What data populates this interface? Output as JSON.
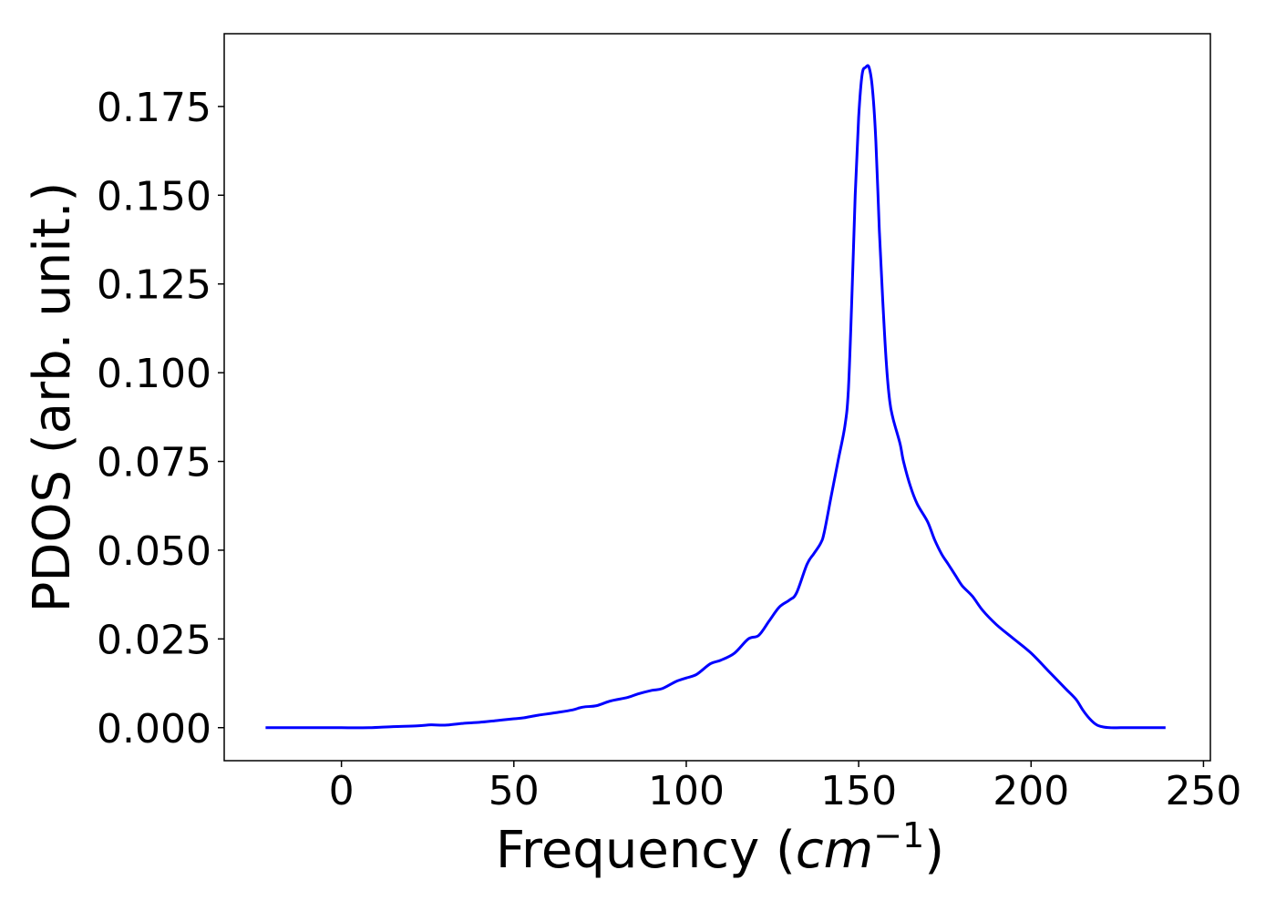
{
  "chart_data": {
    "type": "line",
    "title": "",
    "xlabel": "Frequency (",
    "xlabel_italic": "cm",
    "xlabel_superscript": "−1",
    "xlabel_close": ")",
    "ylabel": "PDOS (arb. unit.)",
    "xlim": [
      -34,
      252
    ],
    "ylim": [
      -0.0093,
      0.1955
    ],
    "xticks": [
      0,
      50,
      100,
      150,
      200,
      250
    ],
    "xtick_labels": [
      "0",
      "50",
      "100",
      "150",
      "200",
      "250"
    ],
    "yticks": [
      0.0,
      0.025,
      0.05,
      0.075,
      0.1,
      0.125,
      0.15,
      0.175
    ],
    "ytick_labels": [
      "0.000",
      "0.025",
      "0.050",
      "0.075",
      "0.100",
      "0.125",
      "0.150",
      "0.175"
    ],
    "grid": false,
    "legend": "none",
    "series": [
      {
        "color": "#0000ff",
        "x": [
          -22,
          -10,
          0,
          8,
          15,
          22,
          26,
          30,
          35,
          40,
          45,
          50,
          53,
          57,
          62,
          67,
          70,
          74,
          78,
          83,
          86,
          90,
          93,
          97,
          100,
          103,
          107,
          110,
          114,
          118,
          121,
          124,
          127,
          130,
          132,
          135,
          137,
          139,
          140,
          142,
          144,
          146,
          147,
          148,
          149,
          150,
          151,
          152,
          153,
          154,
          155,
          156,
          157,
          158,
          159,
          160,
          162,
          163,
          165,
          167,
          170,
          172,
          174,
          176,
          178,
          180,
          183,
          186,
          190,
          195,
          200,
          205,
          210,
          213,
          215,
          217,
          219,
          221,
          223,
          226,
          230,
          239
        ],
        "y": [
          0.0,
          0.0,
          0.0,
          0.0,
          0.0003,
          0.0005,
          0.0008,
          0.0007,
          0.0012,
          0.0015,
          0.002,
          0.0025,
          0.0028,
          0.0035,
          0.0042,
          0.005,
          0.0058,
          0.0062,
          0.0075,
          0.0085,
          0.0095,
          0.0105,
          0.011,
          0.013,
          0.014,
          0.015,
          0.018,
          0.019,
          0.021,
          0.025,
          0.026,
          0.03,
          0.034,
          0.036,
          0.038,
          0.046,
          0.049,
          0.052,
          0.055,
          0.065,
          0.075,
          0.085,
          0.095,
          0.12,
          0.15,
          0.172,
          0.184,
          0.186,
          0.186,
          0.18,
          0.165,
          0.14,
          0.12,
          0.103,
          0.092,
          0.087,
          0.08,
          0.075,
          0.068,
          0.063,
          0.058,
          0.053,
          0.049,
          0.046,
          0.043,
          0.04,
          0.037,
          0.033,
          0.029,
          0.025,
          0.021,
          0.016,
          0.011,
          0.008,
          0.005,
          0.0025,
          0.0008,
          0.0002,
          0.0,
          0.0,
          0.0,
          0.0
        ]
      }
    ]
  }
}
